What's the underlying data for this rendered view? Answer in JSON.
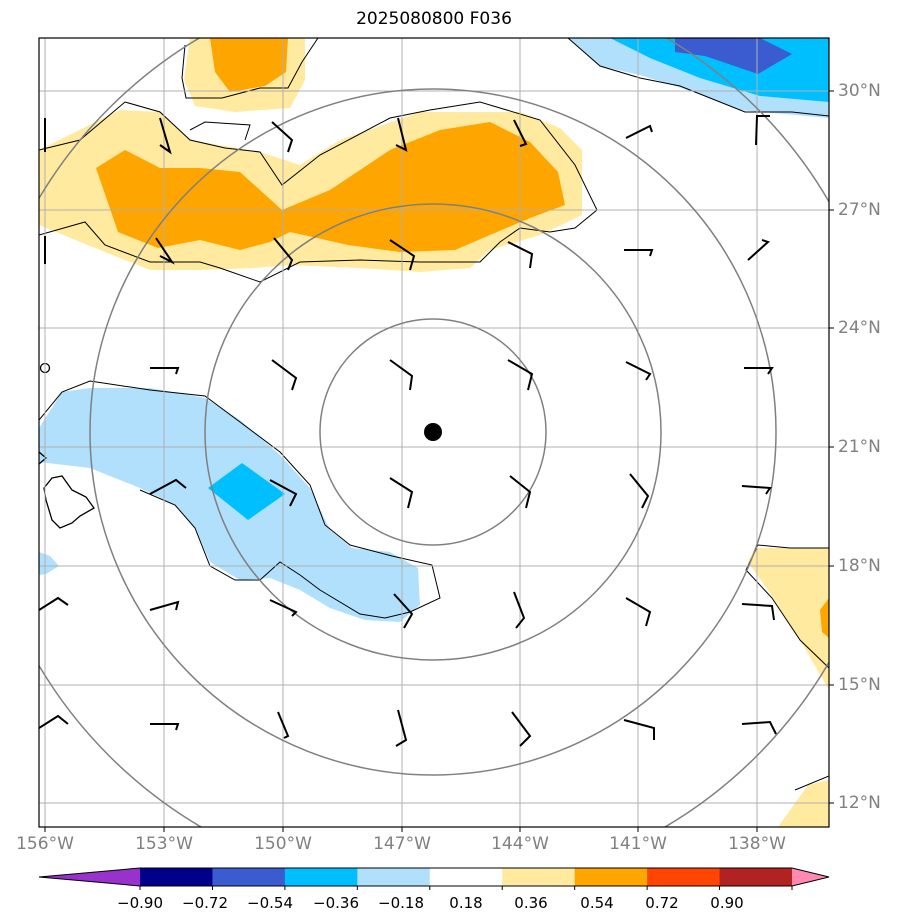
{
  "title": "2025080800 F036",
  "lon_labels": [
    "156°W",
    "153°W",
    "150°W",
    "147°W",
    "144°W",
    "141°W",
    "138°W"
  ],
  "lat_labels": [
    "30°N",
    "27°N",
    "24°N",
    "21°N",
    "18°N",
    "15°N",
    "12°N"
  ],
  "colorbar": {
    "ticks": [
      "−0.90",
      "−0.72",
      "−0.54",
      "−0.36",
      "−0.18",
      "0.18",
      "0.36",
      "0.54",
      "0.72",
      "0.90"
    ],
    "colors": [
      "#9932cc",
      "#00008b",
      "#3b5bd0",
      "#00bfff",
      "#b0e0fb",
      "#ffffff",
      "#ffeaa0",
      "#ffa500",
      "#ff4500",
      "#b22222",
      "#ff89b0"
    ]
  },
  "storm_center": "filled-circle-marker",
  "range_rings": 4,
  "colors": {
    "grid": "#b0b0b0",
    "rings": "#808080",
    "coast": "#000000"
  }
}
